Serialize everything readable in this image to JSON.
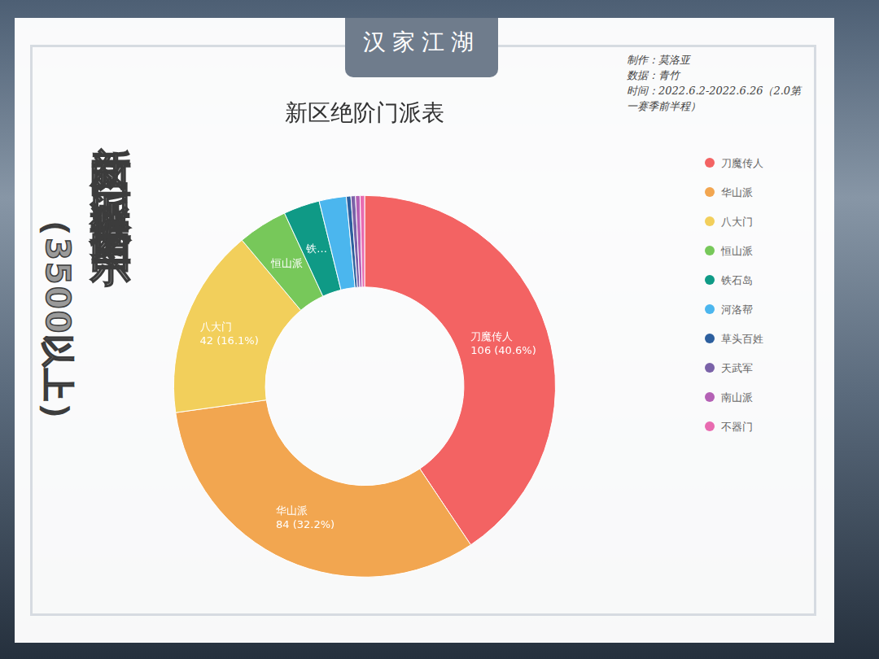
{
  "header": "汉家江湖",
  "side_title": "新区门派数据图示",
  "side_subtitle": "（3500以上）",
  "credits": [
    "制作：莫洛亚",
    "数据：青竹",
    "时间：2022.6.2-2022.6.26（2.0第一赛季前半程）"
  ],
  "chart_data": {
    "type": "doughnut",
    "title": "新区绝阶门派表",
    "categories": [
      "刀魔传人",
      "华山派",
      "八大门",
      "恒山派",
      "铁石岛",
      "河洛帮",
      "草头百姓",
      "天武军",
      "南山派",
      "不器门"
    ],
    "values": [
      106,
      84,
      42,
      11,
      8,
      6,
      1,
      1,
      1,
      1
    ],
    "colors": [
      "#f36363",
      "#f2a650",
      "#f2cf5b",
      "#77c85a",
      "#0f9a86",
      "#4bb6ee",
      "#2c5f9e",
      "#7a62a8",
      "#b461b5",
      "#e86bb0"
    ],
    "slice_labels": [
      "刀魔传人",
      "华山派",
      "八大门",
      "恒山派",
      "铁...",
      null,
      null,
      null,
      null,
      null
    ],
    "value_labels": [
      "106 (40.6%)",
      "84 (32.2%)",
      "42 (16.1%)",
      null,
      null,
      null,
      null,
      null,
      null,
      null
    ],
    "data_labels": true,
    "legend": "right"
  }
}
